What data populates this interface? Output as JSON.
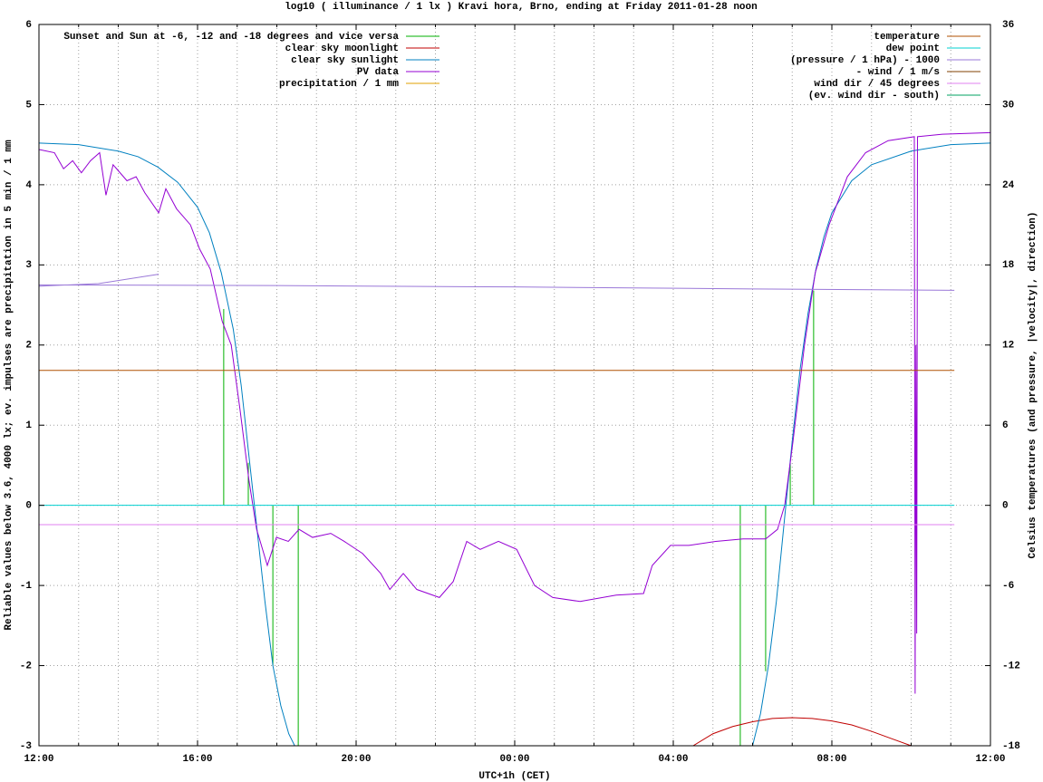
{
  "chart_data": {
    "type": "line",
    "title": "log10 ( illuminance / 1 lx ) Kravi hora, Brno, ending at Friday 2011-01-28 noon",
    "xlabel": "UTC+1h (CET)",
    "ylabel": "Reliable values below 3.6, 4000 lx; ev. impulses are precipitation in 5 min / 1 mm",
    "y2label": "Celsius temperatures (and pressure, |velocity|, direction)",
    "xlim": [
      0,
      24
    ],
    "xticks": [
      {
        "value": 0,
        "label": "12:00"
      },
      {
        "value": 4,
        "label": "16:00"
      },
      {
        "value": 8,
        "label": "20:00"
      },
      {
        "value": 12,
        "label": "00:00"
      },
      {
        "value": 16,
        "label": "04:00"
      },
      {
        "value": 20,
        "label": "08:00"
      },
      {
        "value": 24,
        "label": "12:00"
      }
    ],
    "xminorticks": [
      1,
      2,
      3,
      5,
      6,
      7,
      9,
      10,
      11,
      13,
      14,
      15,
      17,
      18,
      19,
      21,
      22,
      23
    ],
    "ylim": [
      -3,
      6
    ],
    "yticks": [
      -3,
      -2,
      -1,
      0,
      1,
      2,
      3,
      4,
      5,
      6
    ],
    "y2lim": [
      -18,
      36
    ],
    "y2ticks": [
      -18,
      -12,
      -6,
      0,
      6,
      12,
      18,
      24,
      30,
      36
    ],
    "grid": true,
    "series": [
      {
        "name": "Sunset and Sun at -6, -12 and -18 degrees and vice versa",
        "color": "#00b000",
        "style": "impulses",
        "legend": "left",
        "x": [
          4.66,
          5.28,
          5.9,
          6.54,
          17.69,
          18.33,
          18.95,
          19.54
        ],
        "values": [
          2.45,
          0.53,
          -2.0,
          -3.0,
          -3.0,
          -2.07,
          0.53,
          2.68
        ]
      },
      {
        "name": "clear sky moonlight",
        "color": "#c00000",
        "style": "line",
        "legend": "left",
        "x": [
          16.5,
          17,
          17.5,
          18,
          18.5,
          19,
          19.5,
          20,
          20.5,
          21,
          21.5,
          22
        ],
        "values": [
          -3.0,
          -2.85,
          -2.76,
          -2.7,
          -2.66,
          -2.65,
          -2.66,
          -2.69,
          -2.74,
          -2.82,
          -2.91,
          -3.0
        ]
      },
      {
        "name": "clear sky sunlight",
        "color": "#0080c0",
        "style": "line",
        "legend": "left",
        "x": [
          0,
          1,
          2,
          2.5,
          3,
          3.5,
          4,
          4.3,
          4.6,
          4.9,
          5.1,
          5.3,
          5.5,
          5.7,
          5.9,
          6.1,
          6.3,
          6.45,
          12,
          18,
          18.2,
          18.4,
          18.6,
          18.8,
          19,
          19.2,
          19.4,
          19.6,
          19.8,
          20,
          20.5,
          21,
          22,
          23,
          24
        ],
        "values": [
          4.52,
          4.5,
          4.42,
          4.35,
          4.22,
          4.03,
          3.72,
          3.4,
          2.9,
          2.2,
          1.5,
          0.6,
          -0.3,
          -1.2,
          -2.0,
          -2.5,
          -2.85,
          -3.0,
          null,
          -3.0,
          -2.6,
          -2.0,
          -1.2,
          -0.2,
          0.8,
          1.7,
          2.4,
          2.95,
          3.35,
          3.65,
          4.05,
          4.25,
          4.42,
          4.5,
          4.52
        ]
      },
      {
        "name": "PV data",
        "color": "#9400d3",
        "style": "line",
        "legend": "left",
        "x": [
          0,
          0.39,
          0.62,
          0.85,
          1.07,
          1.3,
          1.53,
          1.69,
          1.87,
          2.22,
          2.45,
          2.67,
          3.02,
          3.2,
          3.47,
          3.82,
          4.05,
          4.32,
          4.62,
          4.85,
          5.07,
          5.3,
          5.49,
          5.76,
          5.99,
          6.29,
          6.56,
          6.9,
          7.36,
          7.7,
          8.16,
          8.62,
          8.85,
          9.19,
          9.53,
          10.1,
          10.45,
          10.79,
          11.13,
          11.59,
          12.05,
          12.5,
          12.96,
          13.65,
          14.56,
          15.25,
          15.47,
          15.93,
          16.39,
          17.07,
          17.76,
          18.33,
          18.63,
          18.81,
          19.02,
          19.31,
          19.58,
          19.93,
          20.39,
          20.85,
          21.42,
          22.08,
          22.1,
          22.12,
          22.14,
          22.16,
          22.79,
          24
        ],
        "values": [
          4.44,
          4.4,
          4.2,
          4.3,
          4.15,
          4.3,
          4.4,
          3.87,
          4.25,
          4.05,
          4.1,
          3.9,
          3.65,
          3.95,
          3.7,
          3.5,
          3.2,
          2.95,
          2.3,
          2.0,
          1.2,
          0.3,
          -0.3,
          -0.75,
          -0.4,
          -0.45,
          -0.3,
          -0.4,
          -0.35,
          -0.45,
          -0.6,
          -0.85,
          -1.05,
          -0.85,
          -1.05,
          -1.15,
          -0.95,
          -0.45,
          -0.55,
          -0.45,
          -0.55,
          -1.0,
          -1.15,
          -1.2,
          -1.12,
          -1.1,
          -0.75,
          -0.5,
          -0.5,
          -0.45,
          -0.42,
          -0.42,
          -0.3,
          0.0,
          0.8,
          2.0,
          2.9,
          3.5,
          4.1,
          4.4,
          4.55,
          4.6,
          -2.35,
          2.0,
          -1.6,
          4.6,
          4.63,
          4.65
        ]
      },
      {
        "name": "precipitation / 1 mm",
        "color": "#e0a000",
        "style": "impulses",
        "legend": "left",
        "x": [],
        "values": []
      },
      {
        "name": "temperature",
        "color": "#b05000",
        "style": "line",
        "legend": "right",
        "axis": "y2",
        "x": [
          0,
          23.09
        ],
        "values": [
          10.1,
          10.1
        ]
      },
      {
        "name": "dew point",
        "color": "#00d0d0",
        "style": "line",
        "legend": "right",
        "axis": "y2",
        "x": [
          0,
          23.09
        ],
        "values": [
          0,
          0
        ]
      },
      {
        "name": "(pressure / 1 hPa) - 1000",
        "color": "#9a78d8",
        "style": "line",
        "legend": "right",
        "axis": "y2",
        "x": [
          0,
          6,
          12,
          18,
          23.09,
          23.09,
          0,
          1.5,
          3.02
        ],
        "values": [
          16.5,
          16.45,
          16.35,
          16.2,
          16.1,
          null,
          16.4,
          16.6,
          17.3
        ]
      },
      {
        "name": "- wind / 1 m/s",
        "color": "#804000",
        "style": "line",
        "legend": "right",
        "axis": "y2",
        "x": [],
        "values": []
      },
      {
        "name": "wind dir / 45 degrees",
        "color": "#e080f0",
        "style": "line",
        "legend": "right",
        "axis": "y2",
        "x": [
          0,
          23.09
        ],
        "values": [
          -1.45,
          -1.45
        ]
      },
      {
        "name": "(ev. wind dir - south)",
        "color": "#00a060",
        "style": "line",
        "legend": "right",
        "axis": "y2",
        "x": [],
        "values": []
      }
    ]
  }
}
